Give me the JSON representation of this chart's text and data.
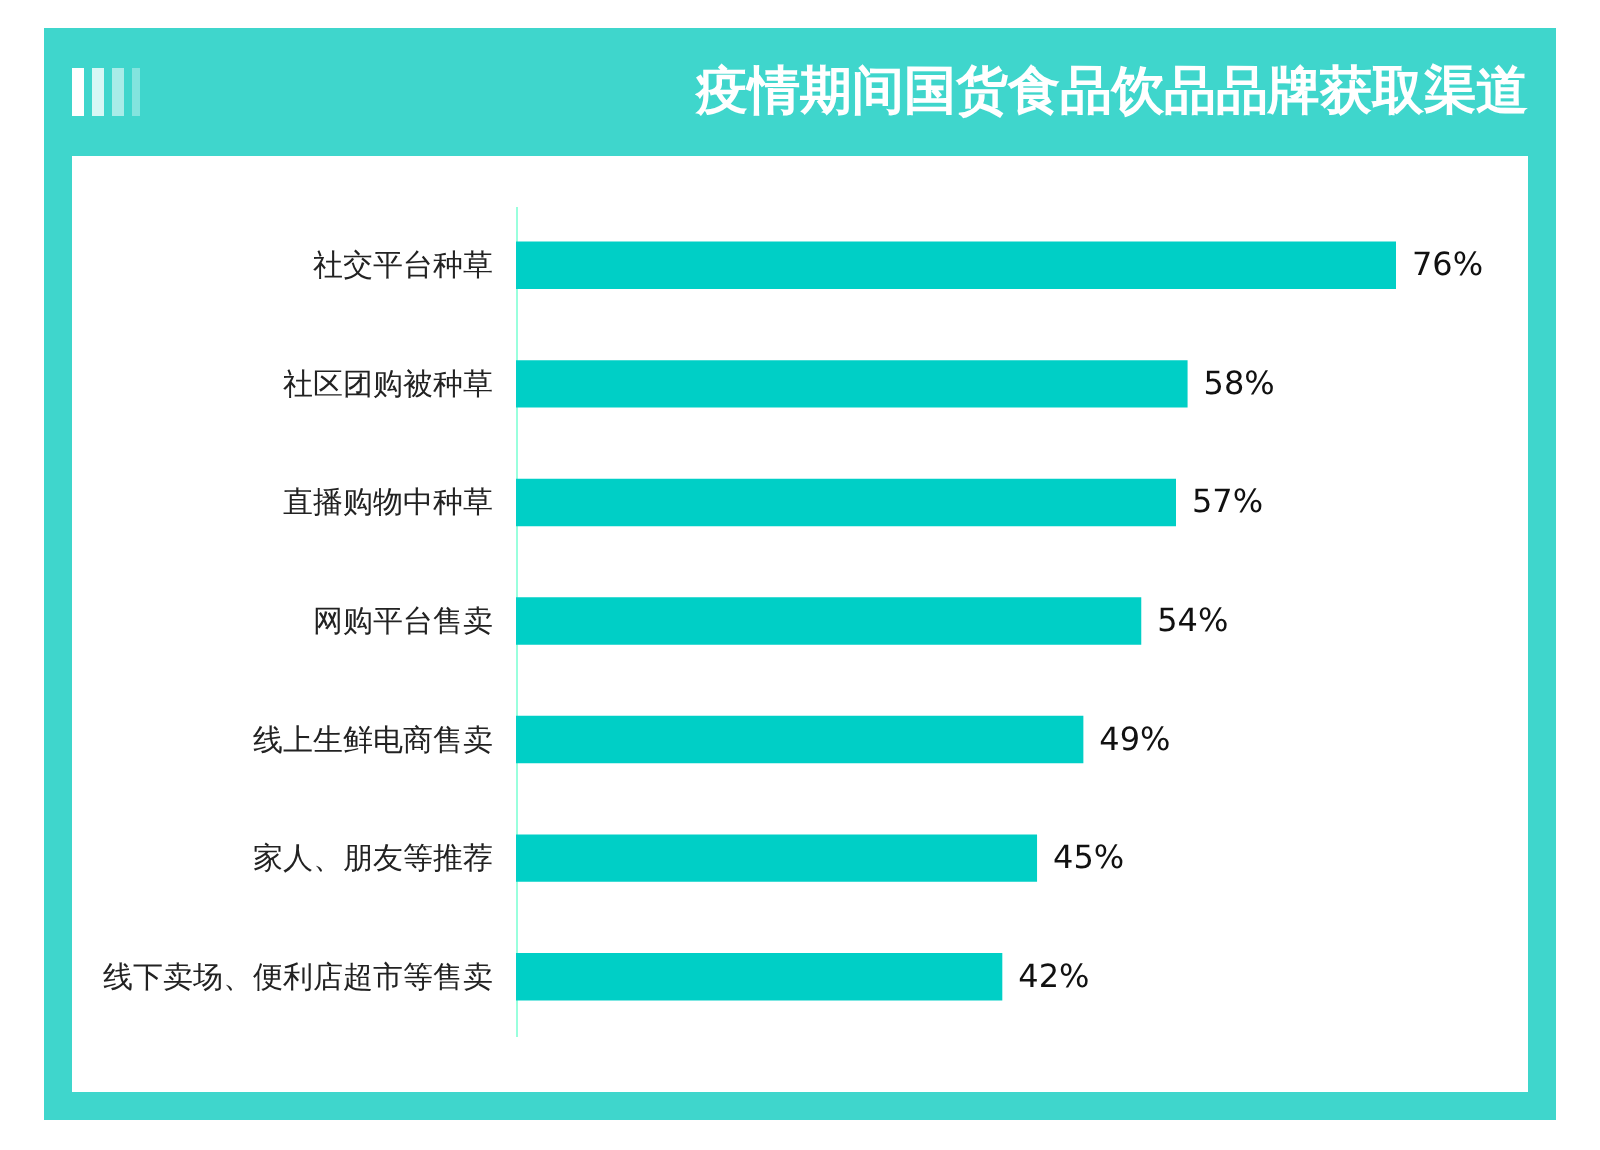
{
  "chart_data": {
    "type": "bar",
    "orientation": "horizontal",
    "title": "疫情期间国货食品饮品品牌获取渠道",
    "categories": [
      "社交平台种草",
      "社区团购被种草",
      "直播购物中种草",
      "网购平台售卖",
      "线上生鲜电商售卖",
      "家人、朋友等推荐",
      "线下卖场、便利店超市等售卖"
    ],
    "values": [
      76,
      58,
      57,
      54,
      49,
      45,
      42
    ],
    "value_labels": [
      "76%",
      "58%",
      "57%",
      "54%",
      "49%",
      "45%",
      "42%"
    ],
    "color": "#00cfc6"
  }
}
